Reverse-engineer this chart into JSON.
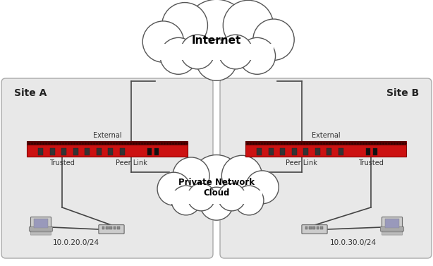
{
  "bg_color": "#ffffff",
  "site_fill": "#e8e8e8",
  "site_border": "#aaaaaa",
  "firewall_red": "#cc1111",
  "firewall_dark": "#7a0000",
  "line_color": "#444444",
  "cloud_fill": "#ffffff",
  "cloud_border": "#555555",
  "title_internet": "Internet",
  "title_private": "Private Network\nCloud",
  "site_a_label": "Site A",
  "site_b_label": "Site B",
  "external_label": "External",
  "trusted_a": "Trusted",
  "peer_link_a": "Peer Link",
  "peer_link_b": "Peer Link",
  "trusted_b": "Trusted",
  "subnet_a": "10.0.20.0/24",
  "subnet_b": "10.0.30.0/24",
  "figsize": [
    6.14,
    3.77
  ],
  "dpi": 100
}
